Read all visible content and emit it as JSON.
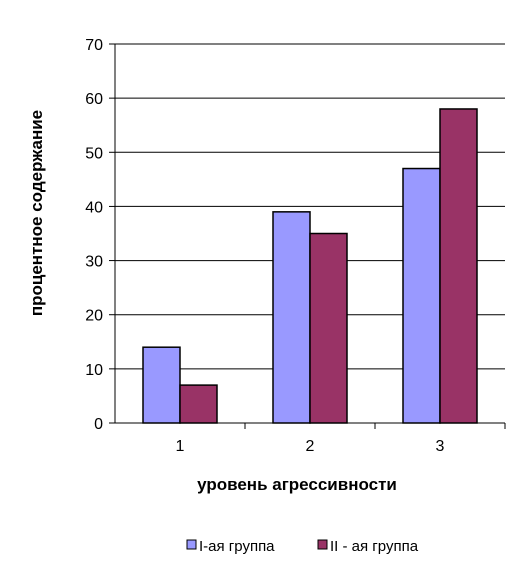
{
  "chart_data": {
    "type": "bar",
    "categories": [
      "1",
      "2",
      "3"
    ],
    "series": [
      {
        "name": "I-ая группа",
        "values": [
          14,
          39,
          47
        ],
        "color": "#9999ff"
      },
      {
        "name": "II - ая группа",
        "values": [
          7,
          35,
          58
        ],
        "color": "#993366"
      }
    ],
    "xlabel": "уровень агрессивности",
    "ylabel": "процентное содержание",
    "ylim": [
      0,
      70
    ],
    "yticks": [
      "0",
      "10",
      "20",
      "30",
      "40",
      "50",
      "60",
      "70"
    ],
    "grid": true,
    "legend": "bottom"
  }
}
